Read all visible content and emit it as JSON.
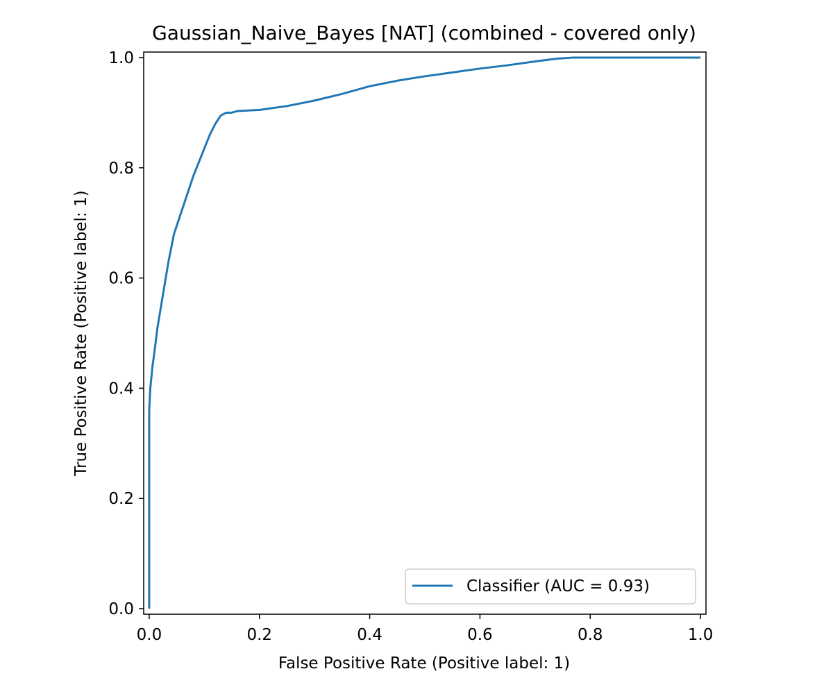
{
  "chart_data": {
    "type": "line",
    "title": "Gaussian_Naive_Bayes [NAT] (combined - covered only)",
    "xlabel": "False Positive Rate (Positive label: 1)",
    "ylabel": "True Positive Rate (Positive label: 1)",
    "xlim": [
      -0.01,
      1.01
    ],
    "ylim": [
      -0.01,
      1.01
    ],
    "xticks": [
      0.0,
      0.2,
      0.4,
      0.6,
      0.8,
      1.0
    ],
    "xtick_labels": [
      "0.0",
      "0.2",
      "0.4",
      "0.6",
      "0.8",
      "1.0"
    ],
    "yticks": [
      0.0,
      0.2,
      0.4,
      0.6,
      0.8,
      1.0
    ],
    "ytick_labels": [
      "0.0",
      "0.2",
      "0.4",
      "0.6",
      "0.8",
      "1.0"
    ],
    "grid": false,
    "legend_position": "lower-right",
    "series": [
      {
        "name": "Classifier (AUC = 0.93)",
        "color": "#1f77b4",
        "x": [
          0.0,
          0.0,
          0.001,
          0.002,
          0.004,
          0.006,
          0.01,
          0.015,
          0.02,
          0.025,
          0.03,
          0.035,
          0.04,
          0.045,
          0.05,
          0.055,
          0.06,
          0.07,
          0.08,
          0.09,
          0.1,
          0.11,
          0.12,
          0.13,
          0.14,
          0.15,
          0.16,
          0.2,
          0.25,
          0.3,
          0.35,
          0.4,
          0.45,
          0.5,
          0.55,
          0.6,
          0.65,
          0.7,
          0.74,
          0.77,
          0.8,
          0.9,
          1.0
        ],
        "y": [
          0.0,
          0.36,
          0.38,
          0.4,
          0.42,
          0.44,
          0.47,
          0.51,
          0.54,
          0.57,
          0.6,
          0.63,
          0.655,
          0.68,
          0.695,
          0.71,
          0.725,
          0.755,
          0.785,
          0.81,
          0.835,
          0.86,
          0.88,
          0.895,
          0.9,
          0.9,
          0.903,
          0.905,
          0.912,
          0.922,
          0.934,
          0.948,
          0.958,
          0.966,
          0.973,
          0.98,
          0.986,
          0.993,
          0.998,
          1.0,
          1.0,
          1.0,
          1.0
        ]
      }
    ]
  }
}
